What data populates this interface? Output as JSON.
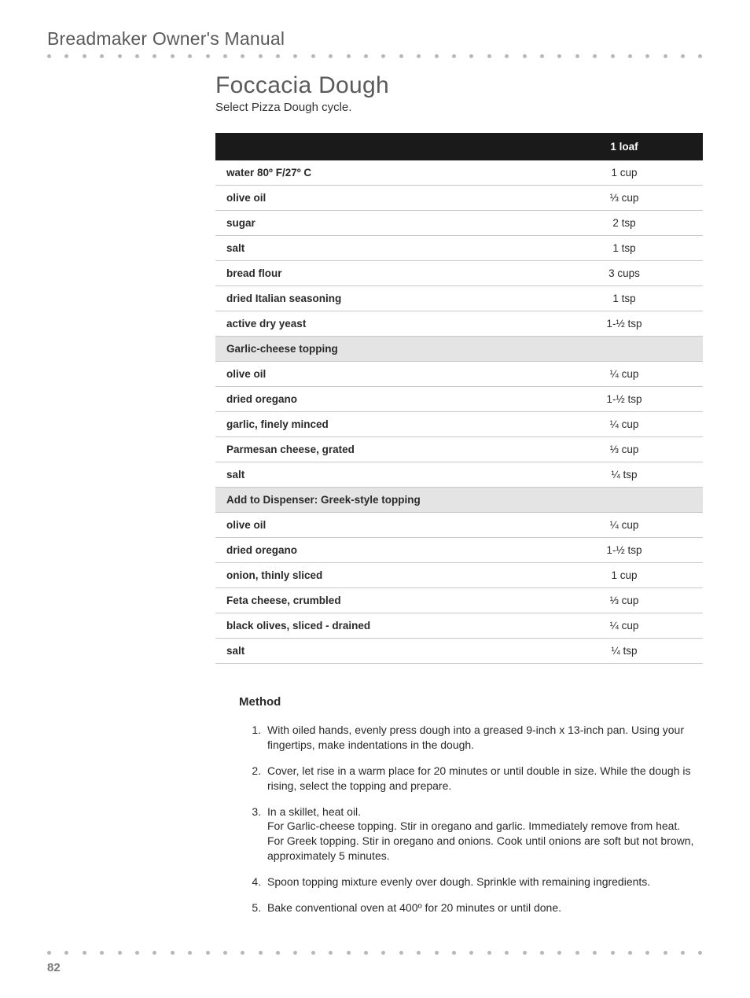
{
  "header": {
    "manual_title": "Breadmaker Owner's Manual"
  },
  "recipe": {
    "title": "Foccacia Dough",
    "subtitle": "Select Pizza Dough cycle.",
    "column_header": "1 loaf",
    "rows": [
      {
        "type": "row",
        "ingredient": "water 80º F/27º C",
        "amount": "1 cup"
      },
      {
        "type": "row",
        "ingredient": "olive oil",
        "amount": "⅓ cup"
      },
      {
        "type": "row",
        "ingredient": "sugar",
        "amount": "2 tsp"
      },
      {
        "type": "row",
        "ingredient": "salt",
        "amount": "1 tsp"
      },
      {
        "type": "row",
        "ingredient": "bread flour",
        "amount": "3 cups"
      },
      {
        "type": "row",
        "ingredient": "dried Italian seasoning",
        "amount": "1 tsp"
      },
      {
        "type": "row",
        "ingredient": "active dry yeast",
        "amount": "1-½ tsp"
      },
      {
        "type": "section",
        "ingredient": "Garlic-cheese topping"
      },
      {
        "type": "row",
        "ingredient": "olive oil",
        "amount": "¼ cup"
      },
      {
        "type": "row",
        "ingredient": "dried oregano",
        "amount": "1-½ tsp"
      },
      {
        "type": "row",
        "ingredient": "garlic, finely minced",
        "amount": "¼ cup"
      },
      {
        "type": "row",
        "ingredient": "Parmesan cheese, grated",
        "amount": "⅓ cup"
      },
      {
        "type": "row",
        "ingredient": "salt",
        "amount": "¼ tsp"
      },
      {
        "type": "section",
        "ingredient": "Add to Dispenser: Greek-style topping"
      },
      {
        "type": "row",
        "ingredient": "olive oil",
        "amount": "¼ cup"
      },
      {
        "type": "row",
        "ingredient": "dried oregano",
        "amount": "1-½ tsp"
      },
      {
        "type": "row",
        "ingredient": "onion, thinly sliced",
        "amount": "1 cup"
      },
      {
        "type": "row",
        "ingredient": "Feta cheese, crumbled",
        "amount": "⅓ cup"
      },
      {
        "type": "row",
        "ingredient": "black olives, sliced - drained",
        "amount": "¼ cup"
      },
      {
        "type": "row",
        "ingredient": "salt",
        "amount": "¼ tsp"
      }
    ]
  },
  "method": {
    "heading": "Method",
    "steps": [
      "With oiled hands, evenly press dough into a greased 9-inch x 13-inch pan. Using your fingertips, make indentations in the dough.",
      "Cover, let rise in a warm place for 20 minutes or until double in size. While the dough is rising, select the topping and prepare.",
      "In a skillet, heat oil.\nFor Garlic-cheese topping. Stir in oregano and garlic. Immediately remove from heat.\nFor Greek topping. Stir in oregano and onions. Cook until onions are soft but not brown, approximately 5 minutes.",
      "Spoon topping mixture evenly over dough. Sprinkle with remaining ingredients.",
      "Bake conventional oven at 400º for 20 minutes or until done."
    ]
  },
  "footer": {
    "page_number": "82"
  },
  "style": {
    "dot_count": 38,
    "dot_color": "#b8b8b8",
    "header_bg": "#1a1a1a",
    "section_bg": "#e4e4e4",
    "border_color": "#c结588UpdatedAtc8c8c8"
  }
}
